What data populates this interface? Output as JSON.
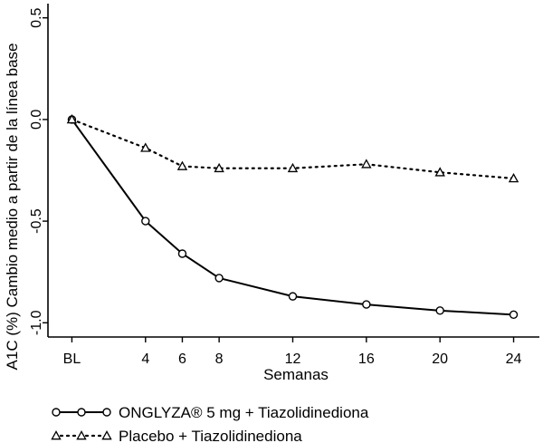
{
  "chart_data": {
    "type": "line",
    "title": "",
    "xlabel": "Semanas",
    "ylabel": "A1C (%) Cambio medio a partir de la línea base",
    "x": [
      0,
      4,
      6,
      8,
      12,
      16,
      20,
      24
    ],
    "x_tick_labels": [
      "BL",
      "4",
      "6",
      "8",
      "12",
      "16",
      "20",
      "24"
    ],
    "xlim": [
      -1.3,
      25.4
    ],
    "y_ticks": [
      0.5,
      0.0,
      -0.5,
      -1.0
    ],
    "y_tick_labels": [
      "0.5",
      "0.0",
      "-0.5",
      "-1.0"
    ],
    "ylim": [
      -1.07,
      0.57
    ],
    "grid": false,
    "legend_position": "bottom-left",
    "series": [
      {
        "name": "ONGLYZA® 5 mg + Tiazolidinediona",
        "values": [
          0.0,
          -0.5,
          -0.66,
          -0.78,
          -0.87,
          -0.91,
          -0.94,
          -0.96
        ],
        "line_style": "solid",
        "marker": "circle",
        "color": "#000000"
      },
      {
        "name": "Placebo + Tiazolidinediona",
        "values": [
          0.0,
          -0.14,
          -0.23,
          -0.24,
          -0.24,
          -0.22,
          -0.26,
          -0.29
        ],
        "line_style": "dotted",
        "marker": "triangle",
        "color": "#000000"
      }
    ]
  }
}
